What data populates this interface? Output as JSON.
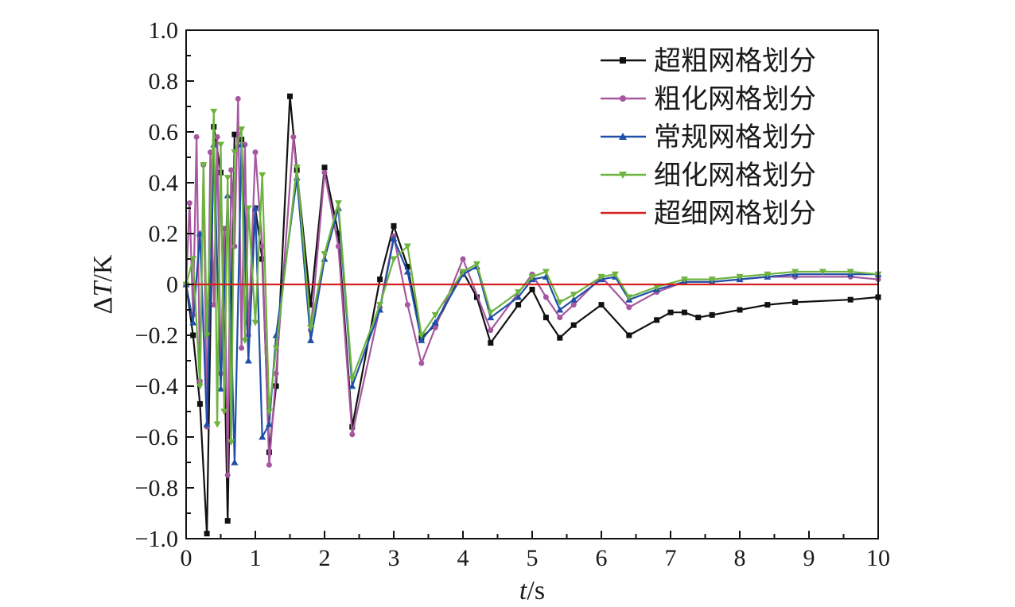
{
  "chart_data": {
    "type": "line",
    "xlabel_italic": "t",
    "xlabel_unit": "/s",
    "ylabel_prefix": "Δ",
    "ylabel_italic": "T",
    "ylabel_unit": "/K",
    "xlim": [
      0,
      10
    ],
    "ylim": [
      -1.0,
      1.0
    ],
    "x_ticks": [
      "0",
      "1",
      "2",
      "3",
      "4",
      "5",
      "6",
      "7",
      "8",
      "9",
      "10"
    ],
    "y_ticks": [
      "−1.0",
      "−0.8",
      "−0.6",
      "−0.4",
      "−0.2",
      "0",
      "0.2",
      "0.4",
      "0.6",
      "0.8",
      "1.0"
    ],
    "legend_position": "top-right",
    "grid": false,
    "series": [
      {
        "name": "超粗网格划分",
        "color": "#111111",
        "marker": "square",
        "x": [
          0,
          0.1,
          0.2,
          0.3,
          0.4,
          0.5,
          0.6,
          0.7,
          0.8,
          0.9,
          1.0,
          1.1,
          1.2,
          1.3,
          1.5,
          1.6,
          1.8,
          2.0,
          2.2,
          2.4,
          2.8,
          3.0,
          3.2,
          3.4,
          3.6,
          4.0,
          4.2,
          4.4,
          4.8,
          5.0,
          5.2,
          5.4,
          5.6,
          6.0,
          6.4,
          6.8,
          7.0,
          7.2,
          7.4,
          7.6,
          8.0,
          8.4,
          8.8,
          9.6,
          10.0
        ],
        "y": [
          0.0,
          -0.2,
          -0.47,
          -0.98,
          0.62,
          0.44,
          -0.93,
          0.59,
          0.57,
          -0.15,
          0.3,
          0.1,
          -0.66,
          -0.4,
          0.74,
          0.45,
          -0.08,
          0.46,
          0.2,
          -0.56,
          0.02,
          0.23,
          0.07,
          -0.21,
          -0.16,
          0.05,
          -0.05,
          -0.23,
          -0.08,
          -0.02,
          -0.13,
          -0.21,
          -0.16,
          -0.08,
          -0.2,
          -0.14,
          -0.11,
          -0.11,
          -0.13,
          -0.12,
          -0.1,
          -0.08,
          -0.07,
          -0.06,
          -0.05
        ]
      },
      {
        "name": "粗化网格划分",
        "color": "#a6579f",
        "marker": "circle",
        "x": [
          0,
          0.05,
          0.1,
          0.15,
          0.2,
          0.25,
          0.3,
          0.35,
          0.4,
          0.45,
          0.5,
          0.55,
          0.6,
          0.65,
          0.7,
          0.75,
          0.8,
          0.85,
          0.9,
          1.0,
          1.1,
          1.2,
          1.3,
          1.55,
          1.8,
          2.0,
          2.2,
          2.4,
          2.8,
          3.0,
          3.2,
          3.4,
          3.6,
          4.0,
          4.4,
          5.0,
          5.2,
          5.4,
          5.6,
          6.0,
          6.4,
          6.8,
          7.2,
          7.6,
          8.0,
          8.4,
          8.8,
          9.6,
          10.0
        ],
        "y": [
          0.0,
          0.32,
          -0.12,
          0.58,
          -0.38,
          0.47,
          -0.56,
          0.52,
          -0.08,
          0.58,
          -0.35,
          0.22,
          -0.75,
          0.45,
          0.15,
          0.73,
          -0.25,
          0.55,
          -0.2,
          0.52,
          0.15,
          -0.71,
          -0.35,
          0.58,
          -0.18,
          0.44,
          0.15,
          -0.59,
          -0.09,
          0.19,
          -0.08,
          -0.31,
          -0.17,
          0.1,
          -0.18,
          0.04,
          -0.05,
          -0.13,
          -0.08,
          0.03,
          -0.09,
          -0.03,
          0.01,
          0.01,
          0.02,
          0.03,
          0.03,
          0.03,
          0.02
        ]
      },
      {
        "name": "常规网格划分",
        "color": "#1f4fa8",
        "marker": "triangle-up",
        "x": [
          0,
          0.1,
          0.2,
          0.3,
          0.4,
          0.5,
          0.6,
          0.7,
          0.8,
          0.9,
          1.0,
          1.1,
          1.2,
          1.3,
          1.6,
          1.8,
          2.0,
          2.2,
          2.4,
          2.8,
          3.0,
          3.2,
          3.4,
          3.6,
          4.0,
          4.2,
          4.4,
          4.8,
          5.0,
          5.2,
          5.4,
          5.6,
          6.0,
          6.2,
          6.4,
          6.8,
          7.2,
          7.6,
          8.0,
          8.4,
          8.8,
          9.6,
          10.0
        ],
        "y": [
          0.0,
          -0.15,
          0.2,
          -0.55,
          0.55,
          -0.41,
          0.35,
          -0.7,
          0.55,
          -0.3,
          0.3,
          -0.6,
          -0.55,
          -0.2,
          0.42,
          -0.22,
          0.1,
          0.3,
          -0.4,
          -0.1,
          0.18,
          0.05,
          -0.22,
          -0.15,
          0.04,
          0.07,
          -0.13,
          -0.05,
          0.02,
          0.03,
          -0.1,
          -0.06,
          0.02,
          0.03,
          -0.06,
          -0.02,
          0.01,
          0.01,
          0.02,
          0.03,
          0.04,
          0.04,
          0.04
        ]
      },
      {
        "name": "细化网格划分",
        "color": "#6db33f",
        "marker": "triangle-down",
        "x": [
          0,
          0.1,
          0.2,
          0.25,
          0.3,
          0.4,
          0.45,
          0.5,
          0.55,
          0.6,
          0.65,
          0.7,
          0.8,
          0.85,
          0.9,
          1.0,
          1.1,
          1.2,
          1.3,
          1.6,
          1.8,
          2.0,
          2.2,
          2.4,
          2.8,
          3.0,
          3.2,
          3.4,
          3.6,
          4.0,
          4.2,
          4.4,
          4.8,
          5.0,
          5.2,
          5.4,
          5.6,
          6.0,
          6.2,
          6.4,
          6.8,
          7.2,
          7.6,
          8.0,
          8.4,
          8.8,
          9.2,
          9.6,
          10.0
        ],
        "y": [
          0.0,
          0.1,
          -0.4,
          0.47,
          -0.2,
          0.68,
          -0.55,
          0.55,
          -0.5,
          0.42,
          -0.62,
          0.52,
          0.61,
          -0.22,
          0.3,
          -0.15,
          0.43,
          -0.5,
          -0.25,
          0.46,
          -0.17,
          0.12,
          0.32,
          -0.37,
          -0.08,
          0.1,
          0.15,
          -0.2,
          -0.12,
          0.05,
          0.08,
          -0.11,
          -0.03,
          0.03,
          0.05,
          -0.07,
          -0.04,
          0.03,
          0.04,
          -0.05,
          -0.01,
          0.02,
          0.02,
          0.03,
          0.04,
          0.05,
          0.05,
          0.05,
          0.04
        ]
      },
      {
        "name": "超细网格划分",
        "color": "#d62020",
        "marker": "none",
        "x": [
          0,
          10
        ],
        "y": [
          0.0,
          0.0
        ]
      }
    ]
  }
}
